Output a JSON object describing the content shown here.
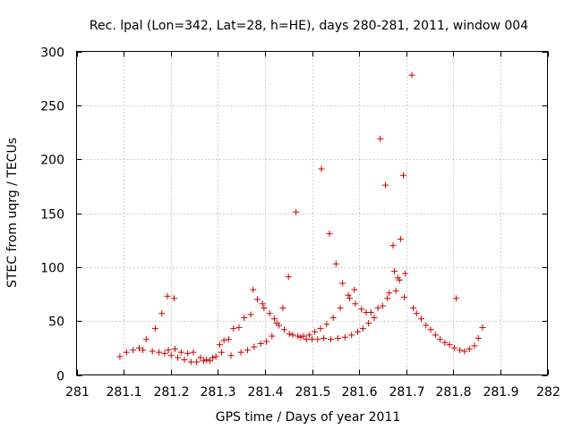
{
  "chart_data": {
    "type": "scatter",
    "title": "Rec. lpal (Lon=342, Lat=28, h=HE), days 280-281, 2011, window 004",
    "xlabel": "GPS time / Days of year 2011",
    "ylabel": "STEC from uqrg / TECUs",
    "xlim": [
      281,
      282
    ],
    "ylim": [
      0,
      300
    ],
    "xticks": [
      "281",
      "281.1",
      "281.2",
      "281.3",
      "281.4",
      "281.5",
      "281.6",
      "281.7",
      "281.8",
      "281.9",
      "282"
    ],
    "xtick_values": [
      281,
      281.1,
      281.2,
      281.3,
      281.4,
      281.5,
      281.6,
      281.7,
      281.8,
      281.9,
      282
    ],
    "yticks": [
      "0",
      "50",
      "100",
      "150",
      "200",
      "250",
      "300"
    ],
    "ytick_values": [
      0,
      50,
      100,
      150,
      200,
      250,
      300
    ],
    "grid": true,
    "marker": "+",
    "color": "#cc0000",
    "series": [
      {
        "name": "STEC",
        "points": [
          [
            281.092,
            17
          ],
          [
            281.106,
            21
          ],
          [
            281.12,
            23
          ],
          [
            281.133,
            25
          ],
          [
            281.141,
            23
          ],
          [
            281.148,
            33
          ],
          [
            281.161,
            22
          ],
          [
            281.167,
            43
          ],
          [
            281.175,
            21
          ],
          [
            281.181,
            57
          ],
          [
            281.187,
            20
          ],
          [
            281.193,
            73
          ],
          [
            281.195,
            23
          ],
          [
            281.201,
            18
          ],
          [
            281.207,
            71
          ],
          [
            281.209,
            24
          ],
          [
            281.215,
            16
          ],
          [
            281.222,
            21
          ],
          [
            281.229,
            14
          ],
          [
            281.236,
            20
          ],
          [
            281.243,
            12
          ],
          [
            281.248,
            21
          ],
          [
            281.255,
            12
          ],
          [
            281.263,
            16
          ],
          [
            281.27,
            13
          ],
          [
            281.276,
            14
          ],
          [
            281.283,
            13
          ],
          [
            281.289,
            16
          ],
          [
            281.296,
            17
          ],
          [
            281.304,
            28
          ],
          [
            281.308,
            21
          ],
          [
            281.313,
            32
          ],
          [
            281.323,
            33
          ],
          [
            281.328,
            18
          ],
          [
            281.333,
            43
          ],
          [
            281.345,
            44
          ],
          [
            281.349,
            21
          ],
          [
            281.356,
            53
          ],
          [
            281.363,
            23
          ],
          [
            281.37,
            56
          ],
          [
            281.375,
            79
          ],
          [
            281.377,
            26
          ],
          [
            281.384,
            70
          ],
          [
            281.391,
            29
          ],
          [
            281.395,
            66
          ],
          [
            281.398,
            62
          ],
          [
            281.403,
            31
          ],
          [
            281.41,
            57
          ],
          [
            281.415,
            36
          ],
          [
            281.42,
            52
          ],
          [
            281.425,
            48
          ],
          [
            281.43,
            46
          ],
          [
            281.438,
            62
          ],
          [
            281.441,
            42
          ],
          [
            281.45,
            91
          ],
          [
            281.452,
            38
          ],
          [
            281.459,
            37
          ],
          [
            281.466,
            151
          ],
          [
            281.47,
            36
          ],
          [
            281.476,
            35
          ],
          [
            281.482,
            36
          ],
          [
            281.488,
            33
          ],
          [
            281.494,
            37
          ],
          [
            281.5,
            33
          ],
          [
            281.506,
            40
          ],
          [
            281.512,
            33
          ],
          [
            281.518,
            43
          ],
          [
            281.52,
            191
          ],
          [
            281.525,
            34
          ],
          [
            281.531,
            47
          ],
          [
            281.537,
            131
          ],
          [
            281.54,
            33
          ],
          [
            281.545,
            53
          ],
          [
            281.551,
            103
          ],
          [
            281.555,
            34
          ],
          [
            281.56,
            62
          ],
          [
            281.565,
            85
          ],
          [
            281.57,
            35
          ],
          [
            281.577,
            74
          ],
          [
            281.58,
            71
          ],
          [
            281.584,
            37
          ],
          [
            281.59,
            79
          ],
          [
            281.592,
            66
          ],
          [
            281.597,
            40
          ],
          [
            281.605,
            61
          ],
          [
            281.608,
            43
          ],
          [
            281.615,
            58
          ],
          [
            281.62,
            48
          ],
          [
            281.625,
            58
          ],
          [
            281.632,
            53
          ],
          [
            281.64,
            62
          ],
          [
            281.645,
            219
          ],
          [
            281.65,
            64
          ],
          [
            281.656,
            176
          ],
          [
            281.66,
            71
          ],
          [
            281.664,
            76
          ],
          [
            281.672,
            120
          ],
          [
            281.675,
            96
          ],
          [
            281.678,
            78
          ],
          [
            281.682,
            90
          ],
          [
            281.686,
            88
          ],
          [
            281.688,
            126
          ],
          [
            281.694,
            185
          ],
          [
            281.696,
            72
          ],
          [
            281.698,
            94
          ],
          [
            281.712,
            278
          ],
          [
            281.715,
            62
          ],
          [
            281.722,
            57
          ],
          [
            281.732,
            52
          ],
          [
            281.742,
            46
          ],
          [
            281.752,
            42
          ],
          [
            281.762,
            37
          ],
          [
            281.772,
            33
          ],
          [
            281.782,
            30
          ],
          [
            281.792,
            28
          ],
          [
            281.802,
            25
          ],
          [
            281.806,
            71
          ],
          [
            281.814,
            23
          ],
          [
            281.824,
            22
          ],
          [
            281.834,
            24
          ],
          [
            281.845,
            27
          ],
          [
            281.853,
            34
          ],
          [
            281.862,
            44
          ]
        ]
      }
    ]
  }
}
